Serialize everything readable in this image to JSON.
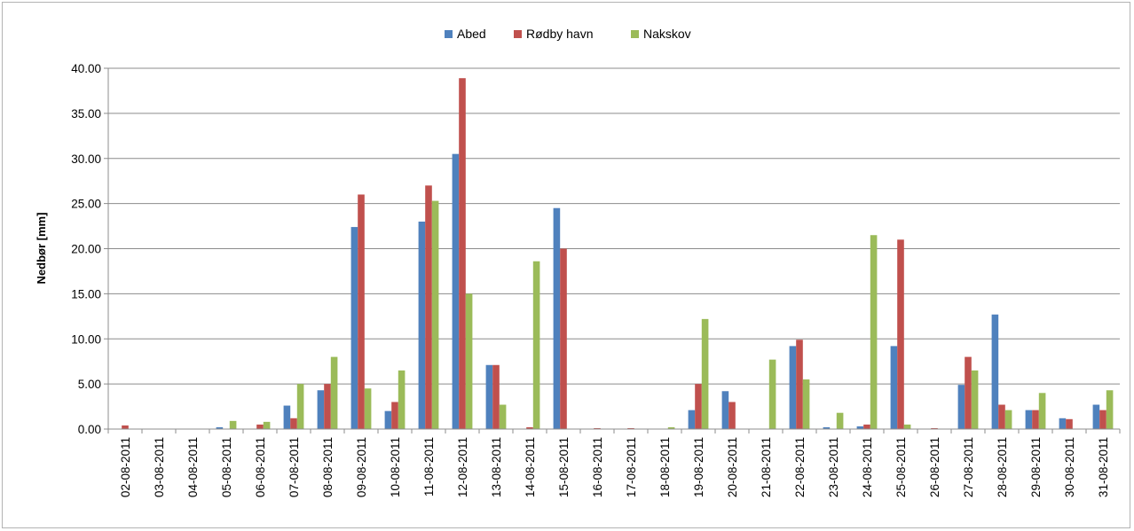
{
  "chart_data": {
    "type": "bar",
    "title": "",
    "xlabel": "",
    "ylabel": "Nedbør [mm]",
    "ylim": [
      0,
      40
    ],
    "yticks": [
      "0.00",
      "5.00",
      "10.00",
      "15.00",
      "20.00",
      "25.00",
      "30.00",
      "35.00",
      "40.00"
    ],
    "grid": "horizontal",
    "legend_position": "top-center",
    "categories": [
      "02-08-2011",
      "03-08-2011",
      "04-08-2011",
      "05-08-2011",
      "06-08-2011",
      "07-08-2011",
      "08-08-2011",
      "09-08-2011",
      "10-08-2011",
      "11-08-2011",
      "12-08-2011",
      "13-08-2011",
      "14-08-2011",
      "15-08-2011",
      "16-08-2011",
      "17-08-2011",
      "18-08-2011",
      "19-08-2011",
      "20-08-2011",
      "21-08-2011",
      "22-08-2011",
      "23-08-2011",
      "24-08-2011",
      "25-08-2011",
      "26-08-2011",
      "27-08-2011",
      "28-08-2011",
      "29-08-2011",
      "30-08-2011",
      "31-08-2011"
    ],
    "series": [
      {
        "name": "Abed",
        "color": "#4f81bd",
        "values": [
          0.0,
          0.0,
          0.0,
          0.2,
          0.0,
          2.6,
          4.3,
          22.4,
          2.0,
          23.0,
          30.5,
          7.1,
          0.0,
          24.5,
          0.0,
          0.0,
          0.0,
          2.1,
          4.2,
          0.0,
          9.2,
          0.2,
          0.3,
          9.2,
          0.0,
          4.9,
          12.7,
          2.1,
          1.2,
          2.7
        ]
      },
      {
        "name": "Rødby havn",
        "color": "#c0504d",
        "values": [
          0.4,
          0.0,
          0.0,
          0.0,
          0.5,
          1.2,
          5.0,
          26.0,
          3.0,
          27.0,
          38.9,
          7.1,
          0.2,
          20.0,
          0.1,
          0.1,
          0.0,
          5.0,
          3.0,
          0.0,
          9.9,
          0.0,
          0.5,
          21.0,
          0.1,
          8.0,
          2.7,
          2.1,
          1.1,
          2.1
        ]
      },
      {
        "name": "Nakskov",
        "color": "#9bbb59",
        "values": [
          0.0,
          0.0,
          0.0,
          0.9,
          0.8,
          5.0,
          8.0,
          4.5,
          6.5,
          25.3,
          15.0,
          2.7,
          18.6,
          0.0,
          0.0,
          0.0,
          0.2,
          12.2,
          0.0,
          7.7,
          5.5,
          1.8,
          21.5,
          0.5,
          0.0,
          6.5,
          2.1,
          4.0,
          0.0,
          4.3
        ]
      }
    ]
  }
}
